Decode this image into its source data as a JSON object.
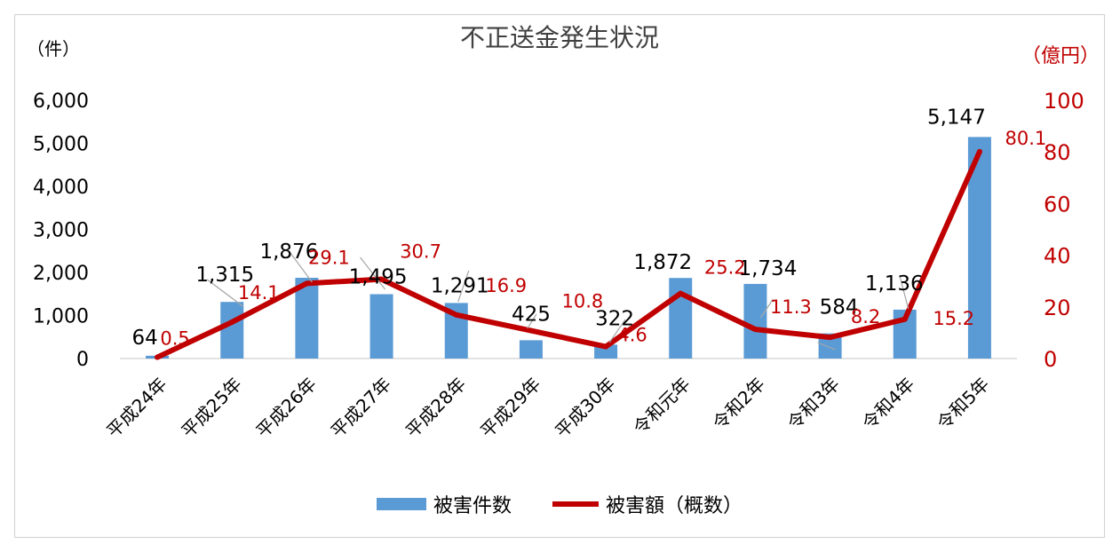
{
  "chart_data": {
    "type": "bar",
    "title": "不正送金発生状況",
    "categories": [
      "平成24年",
      "平成25年",
      "平成26年",
      "平成27年",
      "平成28年",
      "平成29年",
      "平成30年",
      "令和元年",
      "令和2年",
      "令和3年",
      "令和4年",
      "令和5年"
    ],
    "y_left_unit": "（件）",
    "y_right_unit": "（億円）",
    "y_left_ticks": [
      "0",
      "1,000",
      "2,000",
      "3,000",
      "4,000",
      "5,000",
      "6,000"
    ],
    "y_right_ticks": [
      "0",
      "20",
      "40",
      "60",
      "80",
      "100"
    ],
    "ylim_left": [
      0,
      6000
    ],
    "ylim_right": [
      0,
      100
    ],
    "series": [
      {
        "name": "被害件数",
        "type": "bar",
        "axis": "left",
        "color": "#5b9bd5",
        "values": [
          64,
          1315,
          1876,
          1495,
          1291,
          425,
          322,
          1872,
          1734,
          584,
          1136,
          5147
        ],
        "labels": [
          "64",
          "1,315",
          "1,876",
          "1,495",
          "1,291",
          "425",
          "322",
          "1,872",
          "1,734",
          "584",
          "1,136",
          "5,147"
        ]
      },
      {
        "name": "被害額（概数）",
        "type": "line",
        "axis": "right",
        "color": "#c00000",
        "values": [
          0.5,
          14.1,
          29.1,
          30.7,
          16.9,
          10.8,
          4.6,
          25.2,
          11.3,
          8.2,
          15.2,
          80.1
        ],
        "labels": [
          "0.5",
          "14.1",
          "29.1",
          "30.7",
          "16.9",
          "10.8",
          "4.6",
          "25.2",
          "11.3",
          "8.2",
          "15.2",
          "80.1"
        ]
      }
    ],
    "legend_position": "bottom",
    "grid": false
  }
}
